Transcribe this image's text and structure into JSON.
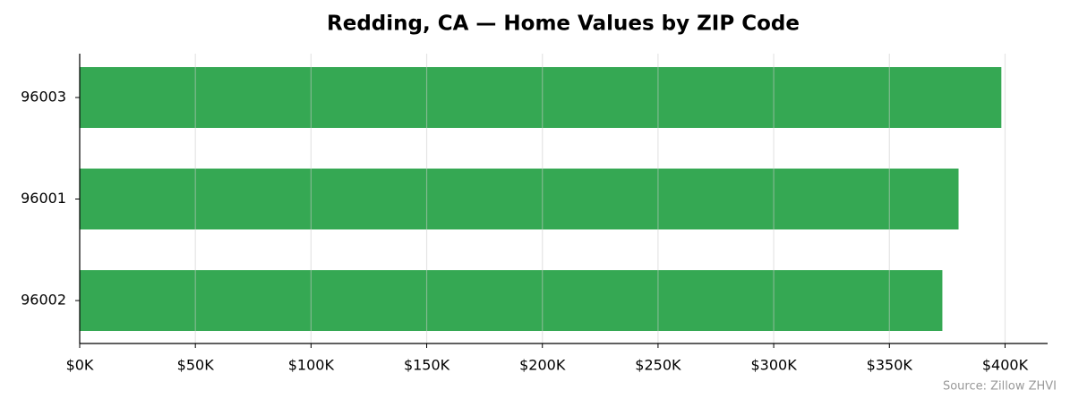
{
  "chart_data": {
    "type": "bar",
    "orientation": "horizontal",
    "title": "Redding, CA — Home Values by ZIP Code",
    "categories": [
      "96003",
      "96001",
      "96002"
    ],
    "values": [
      398400,
      379900,
      372900
    ],
    "color": "#35a853",
    "xlim": [
      0,
      418400
    ],
    "xticks": [
      {
        "value": 0,
        "label": "$0K"
      },
      {
        "value": 50000,
        "label": "$50K"
      },
      {
        "value": 100000,
        "label": "$100K"
      },
      {
        "value": 150000,
        "label": "$150K"
      },
      {
        "value": 200000,
        "label": "$200K"
      },
      {
        "value": 250000,
        "label": "$250K"
      },
      {
        "value": 300000,
        "label": "$300K"
      },
      {
        "value": 350000,
        "label": "$350K"
      },
      {
        "value": 400000,
        "label": "$400K"
      }
    ],
    "grid": true,
    "source": "Source: Zillow ZHVI"
  }
}
